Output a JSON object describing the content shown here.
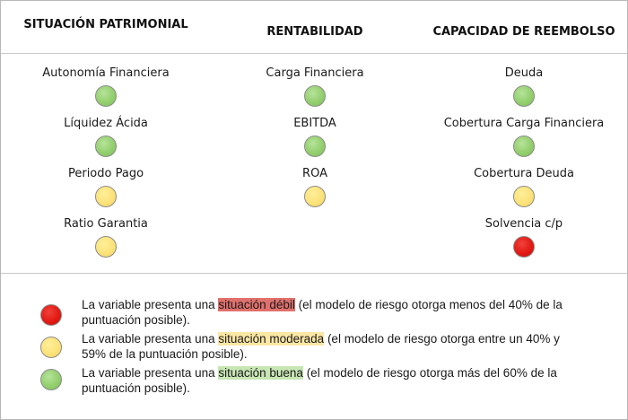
{
  "headers": {
    "col1": "SITUACIÓN PATRIMONIAL",
    "col2": "RENTABILIDAD",
    "col3": "CAPACIDAD DE REEMBOLSO"
  },
  "col1": {
    "items": [
      {
        "label": "Autonomía Financiera",
        "status": "green"
      },
      {
        "label": "Líquidez Ácida",
        "status": "green"
      },
      {
        "label": "Periodo Pago",
        "status": "yellow"
      },
      {
        "label": "Ratio Garantia",
        "status": "yellow"
      }
    ]
  },
  "col2": {
    "items": [
      {
        "label": "Carga Financiera",
        "status": "green"
      },
      {
        "label": "EBITDA",
        "status": "green"
      },
      {
        "label": "ROA",
        "status": "yellow"
      }
    ]
  },
  "col3": {
    "items": [
      {
        "label": "Deuda",
        "status": "green"
      },
      {
        "label": "Cobertura Carga Financiera",
        "status": "green"
      },
      {
        "label": "Cobertura Deuda",
        "status": "yellow"
      },
      {
        "label": "Solvencia c/p",
        "status": "red"
      }
    ]
  },
  "legend": {
    "red": {
      "prefix": "La variable presenta una ",
      "highlight": "situación débil",
      "suffix": " (el modelo de riesgo otorga menos del 40% de la puntuación posible)."
    },
    "yellow": {
      "prefix": "La variable presenta una ",
      "highlight": "situación moderada",
      "suffix": " (el modelo de riesgo otorga entre un 40% y 59% de la puntuación posible)."
    },
    "green": {
      "prefix": "La variable presenta una ",
      "highlight": "situación buena",
      "suffix": " (el modelo de riesgo otorga más del 60% de la puntuación posible)."
    }
  },
  "colors": {
    "green": "#93cf6e",
    "yellow": "#fbe27a",
    "red": "#e21a14"
  }
}
